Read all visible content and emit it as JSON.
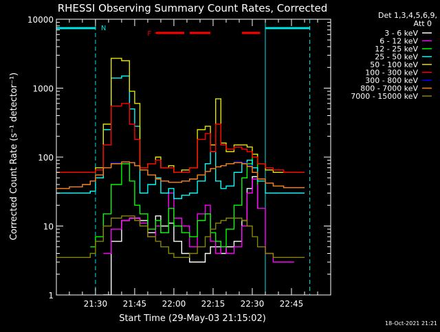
{
  "chart_data": {
    "type": "line",
    "title": "RHESSI Observing Summary Count Rates, Corrected",
    "xlabel": "Start Time (29-May-03 21:15:02)",
    "ylabel": "Corrected Count Rate (s⁻¹ detector⁻¹)",
    "yscale": "log",
    "xlim": [
      "21:15:02",
      "23:00:00"
    ],
    "ylim": [
      1,
      10000
    ],
    "x_ticks": [
      "21:30",
      "21:45",
      "22:00",
      "22:15",
      "22:30",
      "22:45"
    ],
    "y_ticks": [
      "1",
      "10",
      "100",
      "1000",
      "10000"
    ],
    "legend_header": [
      "Det 1,3,4,5,6,9,",
      "Att 0"
    ],
    "legend_position": "right",
    "timestamp": "18-Oct-2021 21:21",
    "annotations": {
      "night": {
        "label": "N",
        "color": "#00e5e5",
        "spans": [
          [
            "21:15",
            "21:30"
          ],
          [
            "22:35",
            "22:52"
          ]
        ],
        "night_end_line": "21:30",
        "night_start_line": "22:35"
      },
      "flare": {
        "label": "F",
        "color": "#ff0000",
        "spans": [
          [
            "21:53",
            "22:04"
          ],
          [
            "22:06",
            "22:14"
          ],
          [
            "22:26",
            "22:33"
          ]
        ]
      }
    },
    "x": [
      "21:15",
      "21:20",
      "21:25",
      "21:28",
      "21:30",
      "21:33",
      "21:36",
      "21:40",
      "21:43",
      "21:45",
      "21:47",
      "21:50",
      "21:53",
      "21:55",
      "21:58",
      "22:00",
      "22:03",
      "22:06",
      "22:09",
      "22:12",
      "22:14",
      "22:16",
      "22:18",
      "22:20",
      "22:23",
      "22:26",
      "22:28",
      "22:30",
      "22:32",
      "22:35",
      "22:38",
      "22:42",
      "22:46",
      "22:50"
    ],
    "series": [
      {
        "name": "3 - 6 keV",
        "color": "#ffffff",
        "values": [
          null,
          null,
          null,
          null,
          null,
          1,
          6,
          12,
          13,
          13,
          12,
          8,
          14,
          10,
          11,
          6,
          4,
          3,
          3,
          4,
          5,
          5,
          4,
          5,
          6,
          12,
          35,
          52,
          18,
          null,
          null,
          null,
          null,
          null
        ]
      },
      {
        "name": "6 - 12 keV",
        "color": "#ff00ff",
        "values": [
          null,
          null,
          null,
          null,
          null,
          4,
          9,
          12,
          13,
          13,
          11,
          7,
          10,
          8,
          30,
          13,
          10,
          5,
          15,
          20,
          6,
          4,
          5,
          4,
          5,
          10,
          30,
          48,
          18,
          4,
          3,
          3,
          3,
          null
        ]
      },
      {
        "name": "12 - 25 keV",
        "color": "#00ff00",
        "values": [
          null,
          null,
          null,
          5,
          7,
          15,
          40,
          80,
          45,
          20,
          15,
          9,
          12,
          8,
          18,
          10,
          8,
          7,
          12,
          15,
          8,
          6,
          5,
          9,
          20,
          50,
          80,
          110,
          40,
          null,
          null,
          null,
          null,
          null
        ]
      },
      {
        "name": "25 - 50 keV",
        "color": "#00ffff",
        "values": [
          30,
          30,
          30,
          32,
          50,
          250,
          1400,
          1500,
          500,
          280,
          30,
          40,
          50,
          30,
          35,
          25,
          28,
          30,
          45,
          80,
          120,
          45,
          35,
          38,
          60,
          80,
          90,
          70,
          45,
          30,
          30,
          30,
          30,
          30
        ]
      },
      {
        "name": "50 - 100 keV",
        "color": "#e5e500",
        "values": [
          60,
          60,
          60,
          60,
          70,
          300,
          2700,
          2500,
          900,
          600,
          70,
          80,
          100,
          70,
          75,
          60,
          65,
          70,
          250,
          280,
          150,
          700,
          160,
          120,
          150,
          150,
          140,
          110,
          80,
          65,
          60,
          60,
          60,
          60
        ]
      },
      {
        "name": "100 - 300 keV",
        "color": "#ff0000",
        "values": [
          60,
          60,
          60,
          60,
          65,
          150,
          550,
          600,
          300,
          180,
          70,
          80,
          90,
          70,
          70,
          60,
          60,
          70,
          180,
          220,
          120,
          300,
          150,
          130,
          140,
          130,
          120,
          100,
          80,
          70,
          65,
          60,
          60,
          60
        ]
      },
      {
        "name": "300 - 800 keV",
        "color": "#0000ff",
        "values": [
          35,
          37,
          40,
          45,
          55,
          70,
          82,
          85,
          83,
          75,
          65,
          55,
          48,
          45,
          43,
          43,
          45,
          48,
          55,
          62,
          68,
          72,
          75,
          80,
          85,
          82,
          75,
          60,
          48,
          42,
          38,
          36,
          36,
          36
        ]
      },
      {
        "name": "800 - 7000 keV",
        "color": "#ff8800",
        "values": [
          35,
          37,
          40,
          45,
          55,
          70,
          80,
          85,
          83,
          75,
          65,
          55,
          48,
          45,
          43,
          43,
          45,
          48,
          55,
          62,
          68,
          72,
          75,
          80,
          83,
          80,
          73,
          60,
          48,
          42,
          38,
          36,
          36,
          36
        ]
      },
      {
        "name": "7000 - 15000 keV",
        "color": "#888800",
        "values": [
          3.5,
          3.5,
          3.5,
          4,
          6,
          10,
          13,
          14,
          14,
          12,
          10,
          7,
          6,
          5,
          4,
          3.5,
          3.5,
          4,
          5,
          7,
          9,
          11,
          12,
          13,
          13,
          12,
          10,
          7,
          5,
          4,
          3.5,
          3.5,
          3.5,
          3.5
        ]
      }
    ]
  }
}
